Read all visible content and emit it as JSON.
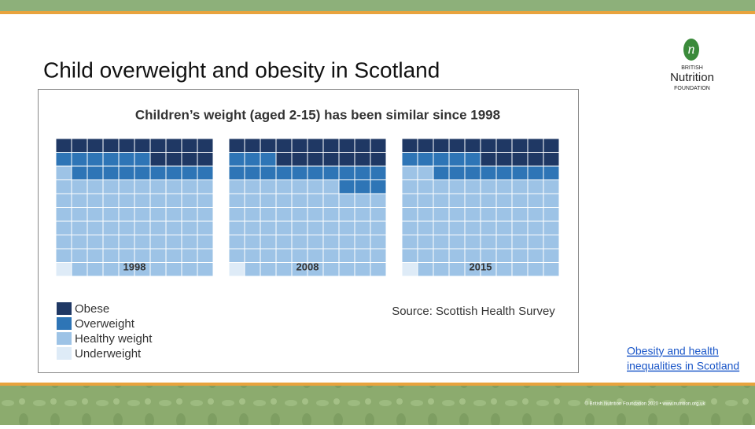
{
  "slide": {
    "title": "Child overweight and obesity in Scotland",
    "logo": {
      "mark": "n",
      "line1": "BRITISH",
      "line2": "Nutrition",
      "line3": "FOUNDATION"
    },
    "link": [
      "Obesity and health",
      "inequalities in Scotland"
    ],
    "footer": "© British Nutrition Foundation 2020 • www.nutrition.org.uk"
  },
  "figure": {
    "title": "Children’s weight (aged 2-15) has been similar since 1998",
    "source": "Source: Scottish Health Survey",
    "categories": [
      "Obese",
      "Overweight",
      "Healthy weight",
      "Underweight"
    ],
    "colors": [
      "#1f3864",
      "#2e75b6",
      "#9dc3e6",
      "#deebf7"
    ]
  },
  "chart_data": [
    {
      "type": "waffle",
      "label": "1998",
      "values": [
        14,
        15,
        70,
        1
      ]
    },
    {
      "type": "waffle",
      "label": "2008",
      "values": [
        17,
        16,
        66,
        1
      ]
    },
    {
      "type": "waffle",
      "label": "2015",
      "values": [
        15,
        13,
        71,
        1
      ]
    }
  ]
}
